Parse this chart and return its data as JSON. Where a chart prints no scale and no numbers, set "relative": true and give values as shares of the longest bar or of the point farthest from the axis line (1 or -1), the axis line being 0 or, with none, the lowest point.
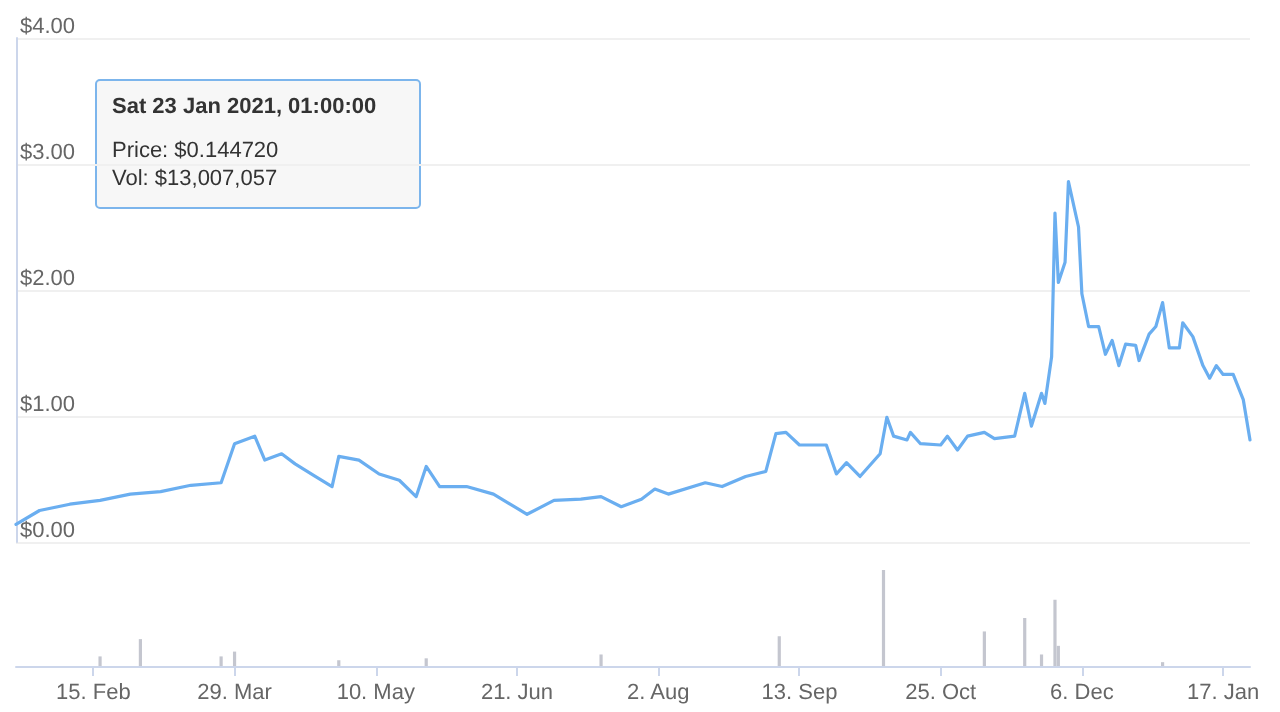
{
  "chart_data": [
    {
      "type": "line",
      "x": [
        "2021-01-23",
        "2021-01-30",
        "2021-02-08",
        "2021-02-17",
        "2021-02-26",
        "2021-03-07",
        "2021-03-16",
        "2021-03-25",
        "2021-03-29",
        "2021-04-04",
        "2021-04-07",
        "2021-04-12",
        "2021-04-16",
        "2021-04-22",
        "2021-04-27",
        "2021-04-29",
        "2021-05-05",
        "2021-05-11",
        "2021-05-17",
        "2021-05-22",
        "2021-05-25",
        "2021-05-29",
        "2021-06-06",
        "2021-06-14",
        "2021-06-24",
        "2021-07-02",
        "2021-07-10",
        "2021-07-16",
        "2021-07-22",
        "2021-07-28",
        "2021-08-01",
        "2021-08-05",
        "2021-08-16",
        "2021-08-21",
        "2021-08-28",
        "2021-09-03",
        "2021-09-06",
        "2021-09-09",
        "2021-09-13",
        "2021-09-21",
        "2021-09-24",
        "2021-09-27",
        "2021-10-01",
        "2021-10-07",
        "2021-10-09",
        "2021-10-11",
        "2021-10-15",
        "2021-10-16",
        "2021-10-19",
        "2021-10-25",
        "2021-10-27",
        "2021-10-30",
        "2021-11-02",
        "2021-11-07",
        "2021-11-10",
        "2021-11-16",
        "2021-11-19",
        "2021-11-21",
        "2021-11-24",
        "2021-11-25",
        "2021-11-27",
        "2021-11-28",
        "2021-11-29",
        "2021-12-01",
        "2021-12-02",
        "2021-12-05",
        "2021-12-06",
        "2021-12-08",
        "2021-12-11",
        "2021-12-13",
        "2021-12-15",
        "2021-12-17",
        "2021-12-19",
        "2021-12-22",
        "2021-12-23",
        "2021-12-26",
        "2021-12-28",
        "2021-12-30",
        "2022-01-01",
        "2022-01-04",
        "2022-01-05",
        "2022-01-08",
        "2022-01-11",
        "2022-01-13",
        "2022-01-15",
        "2022-01-17",
        "2022-01-20",
        "2022-01-23",
        "2022-01-25"
      ],
      "series": [
        {
          "color": "#6aaef0",
          "values": [
            0.14,
            0.25,
            0.3,
            0.33,
            0.38,
            0.4,
            0.45,
            0.47,
            0.78,
            0.84,
            0.65,
            0.7,
            0.62,
            0.52,
            0.44,
            0.68,
            0.65,
            0.54,
            0.49,
            0.36,
            0.6,
            0.44,
            0.44,
            0.38,
            0.22,
            0.33,
            0.34,
            0.36,
            0.28,
            0.34,
            0.42,
            0.38,
            0.47,
            0.44,
            0.52,
            0.56,
            0.86,
            0.87,
            0.77,
            0.77,
            0.54,
            0.63,
            0.52,
            0.7,
            0.99,
            0.84,
            0.81,
            0.87,
            0.78,
            0.77,
            0.84,
            0.73,
            0.84,
            0.87,
            0.82,
            0.84,
            1.18,
            0.92,
            1.18,
            1.1,
            1.47,
            2.61,
            2.06,
            2.22,
            2.86,
            2.5,
            1.97,
            1.71,
            1.71,
            1.49,
            1.6,
            1.4,
            1.57,
            1.56,
            1.44,
            1.65,
            1.71,
            1.9,
            1.54,
            1.54,
            1.74,
            1.63,
            1.4,
            1.3,
            1.4,
            1.33,
            1.33,
            1.13,
            0.81
          ]
        }
      ],
      "xlim": [
        "2021-01-23",
        "2022-01-25"
      ],
      "ylim": [
        0,
        4
      ],
      "yticks": [
        {
          "value": 0,
          "label": "$0.00"
        },
        {
          "value": 1,
          "label": "$1.00"
        },
        {
          "value": 2,
          "label": "$2.00"
        },
        {
          "value": 3,
          "label": "$3.00"
        },
        {
          "value": 4,
          "label": "$4.00"
        }
      ],
      "grid": "y",
      "tick_labels": "y",
      "marker": "none",
      "line_style": "solid",
      "annotations": [
        "Sat 23 Jan 2021, 01:00:00",
        "Price: $0.144720",
        "Vol: $13,007,057"
      ]
    },
    {
      "type": "bar",
      "relative": true,
      "x": [
        "2021-02-17",
        "2021-03-01",
        "2021-03-25",
        "2021-03-29",
        "2021-04-29",
        "2021-05-25",
        "2021-07-16",
        "2021-09-07",
        "2021-10-08",
        "2021-11-07",
        "2021-11-19",
        "2021-11-24",
        "2021-11-28",
        "2021-11-29",
        "2021-12-30"
      ],
      "series": [
        {
          "color": "#c4c6cf",
          "values": [
            0.1,
            0.28,
            0.1,
            0.15,
            0.06,
            0.08,
            0.12,
            0.31,
            1,
            0.36,
            0.5,
            0.12,
            0.69,
            0.21,
            0.04
          ]
        }
      ],
      "xlim": [
        "2021-01-23",
        "2022-01-25"
      ],
      "xticks": [
        {
          "value": "2021-02-15",
          "label": "15. Feb"
        },
        {
          "value": "2021-03-29",
          "label": "29. Mar"
        },
        {
          "value": "2021-05-10",
          "label": "10. May"
        },
        {
          "value": "2021-06-21",
          "label": "21. Jun"
        },
        {
          "value": "2021-08-02",
          "label": "2. Aug"
        },
        {
          "value": "2021-09-13",
          "label": "13. Sep"
        },
        {
          "value": "2021-10-25",
          "label": "25. Oct"
        },
        {
          "value": "2021-12-06",
          "label": "6. Dec"
        },
        {
          "value": "2022-01-17",
          "label": "17. Jan"
        }
      ],
      "tick_labels": "x"
    }
  ]
}
